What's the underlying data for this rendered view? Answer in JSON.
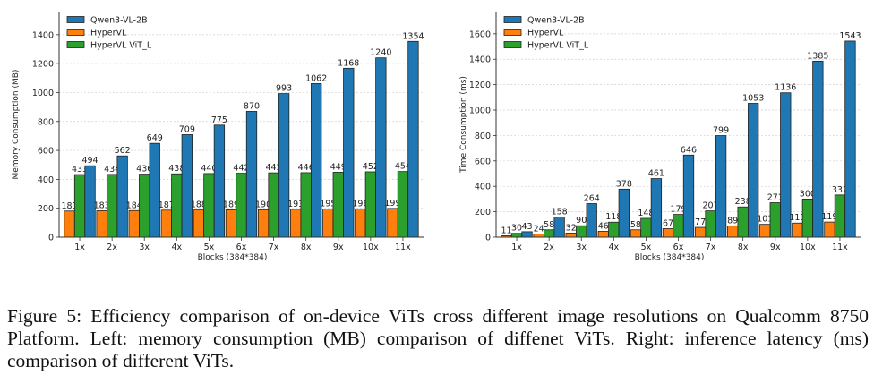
{
  "chart_data": [
    {
      "type": "bar",
      "title": "",
      "xlabel": "Blocks (384*384)",
      "ylabel": "Memory Consumption (MB)",
      "categories": [
        "1x",
        "2x",
        "3x",
        "4x",
        "5x",
        "6x",
        "7x",
        "8x",
        "9x",
        "10x",
        "11x"
      ],
      "ylim": [
        0,
        1560
      ],
      "yticks": [
        0,
        200,
        400,
        600,
        800,
        1000,
        1200,
        1400
      ],
      "grid": "y-dotted",
      "legend": "top-left",
      "series": [
        {
          "name": "HyperVL",
          "color": "#ff7f0e",
          "values": [
            181,
            183,
            184,
            187,
            188,
            189,
            190,
            193,
            195,
            196,
            199
          ]
        },
        {
          "name": "HyperVL ViT_L",
          "color": "#2ca02c",
          "values": [
            433,
            434,
            436,
            438,
            440,
            442,
            445,
            446,
            449,
            452,
            454
          ]
        },
        {
          "name": "Qwen3-VL-2B",
          "color": "#1f77b4",
          "values": [
            494,
            562,
            649,
            709,
            775,
            870,
            993,
            1062,
            1168,
            1240,
            1354
          ]
        }
      ],
      "legend_order": [
        "Qwen3-VL-2B",
        "HyperVL",
        "HyperVL ViT_L"
      ]
    },
    {
      "type": "bar",
      "title": "",
      "xlabel": "Blocks (384*384)",
      "ylabel": "Time Consumption (ms)",
      "categories": [
        "1x",
        "2x",
        "3x",
        "4x",
        "5x",
        "6x",
        "7x",
        "8x",
        "9x",
        "10x",
        "11x"
      ],
      "ylim": [
        0,
        1775
      ],
      "yticks": [
        0,
        200,
        400,
        600,
        800,
        1000,
        1200,
        1400,
        1600
      ],
      "grid": "y-dotted",
      "legend": "top-left",
      "series": [
        {
          "name": "HyperVL",
          "color": "#ff7f0e",
          "values": [
            11,
            24,
            32,
            46,
            58,
            67,
            77,
            89,
            101,
            111,
            119
          ]
        },
        {
          "name": "HyperVL ViT_L",
          "color": "#2ca02c",
          "values": [
            30,
            58,
            90,
            118,
            148,
            179,
            207,
            238,
            271,
            300,
            332
          ]
        },
        {
          "name": "Qwen3-VL-2B",
          "color": "#1f77b4",
          "values": [
            43,
            158,
            264,
            378,
            461,
            646,
            799,
            1053,
            1136,
            1385,
            1543
          ]
        }
      ],
      "legend_order": [
        "Qwen3-VL-2B",
        "HyperVL",
        "HyperVL ViT_L"
      ]
    }
  ],
  "caption": "Figure 5: Efficiency comparison of on-device ViTs cross different image resolutions on Qualcomm 8750 Platform. Left: memory consumption (MB) comparison of diffenet ViTs. Right: inference latency (ms) comparison of different ViTs."
}
